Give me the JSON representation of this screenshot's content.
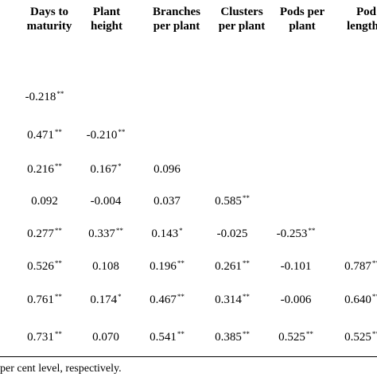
{
  "table": {
    "headers": [
      {
        "line1": "Days to",
        "line2": "maturity"
      },
      {
        "line1": "Plant",
        "line2": "height"
      },
      {
        "line1": "Branches",
        "line2": "per plant"
      },
      {
        "line1": "Clusters",
        "line2": "per plant"
      },
      {
        "line1": "Pods per",
        "line2": "plant"
      },
      {
        "line1": "Pod",
        "line2": "length"
      }
    ],
    "rows": [
      [
        [
          "-0.218",
          "**"
        ]
      ],
      [
        [
          "0.471",
          "**"
        ],
        [
          "-0.210",
          "**"
        ]
      ],
      [
        [
          "0.216",
          "**"
        ],
        [
          "0.167",
          "*"
        ],
        [
          "0.096",
          ""
        ]
      ],
      [
        [
          "0.092",
          ""
        ],
        [
          "-0.004",
          ""
        ],
        [
          "0.037",
          ""
        ],
        [
          "0.585",
          "**"
        ]
      ],
      [
        [
          "0.277",
          "**"
        ],
        [
          "0.337",
          "**"
        ],
        [
          "0.143",
          "*"
        ],
        [
          "-0.025",
          ""
        ],
        [
          "-0.253",
          "**"
        ]
      ],
      [
        [
          "0.526",
          "**"
        ],
        [
          "0.108",
          ""
        ],
        [
          "0.196",
          "**"
        ],
        [
          "0.261",
          "**"
        ],
        [
          "-0.101",
          ""
        ],
        [
          "0.787",
          "**"
        ]
      ],
      [
        [
          "0.761",
          "**"
        ],
        [
          "0.174",
          "*"
        ],
        [
          "0.467",
          "**"
        ],
        [
          "0.314",
          "**"
        ],
        [
          "-0.006",
          ""
        ],
        [
          "0.640",
          "**"
        ]
      ],
      [
        [
          "0.731",
          "**"
        ],
        [
          "0.070",
          ""
        ],
        [
          "0.541",
          "**"
        ],
        [
          "0.385",
          "**"
        ],
        [
          "0.525",
          "**"
        ],
        [
          "0.525",
          "**"
        ]
      ]
    ],
    "footnote": "per cent level, respectively."
  }
}
